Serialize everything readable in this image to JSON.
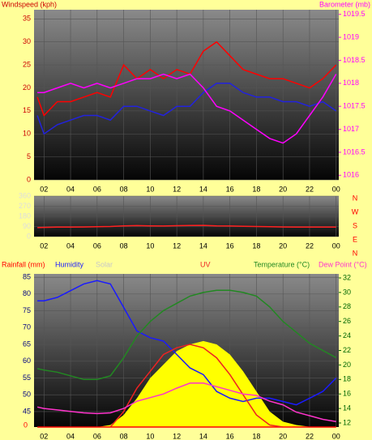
{
  "chart_data": [
    {
      "type": "line",
      "ylabel": "Windspeed (kph)",
      "y2label": "Barometer (mb)",
      "axis_colors": {
        "y": "#cc0000",
        "y2": "#ff00ff"
      },
      "x": [
        1.5,
        2,
        3,
        4,
        5,
        6,
        7,
        8,
        9,
        10,
        11,
        12,
        13,
        14,
        15,
        16,
        17,
        18,
        19,
        20,
        21,
        22,
        23,
        24
      ],
      "xlim": [
        1.25,
        24.2
      ],
      "xticks": [
        {
          "value": 2,
          "label": "02"
        },
        {
          "value": 4,
          "label": "04"
        },
        {
          "value": 6,
          "label": "06"
        },
        {
          "value": 8,
          "label": "08"
        },
        10,
        12,
        14,
        16,
        18,
        20,
        22,
        {
          "value": 24,
          "label": "00"
        }
      ],
      "ylim": [
        0,
        37
      ],
      "yticks": [
        0,
        5,
        10,
        15,
        20,
        25,
        30,
        35
      ],
      "y2lim": [
        1015.9,
        1019.6
      ],
      "y2ticks": [
        1016,
        1016.5,
        1017,
        1017.5,
        1018,
        1018.5,
        1019,
        1019.5
      ],
      "grid": true,
      "series": [
        {
          "color": "#ff0000",
          "values": [
            18,
            14,
            17,
            17,
            18,
            19,
            18,
            25,
            22,
            24,
            22,
            24,
            23,
            28,
            30,
            27,
            24,
            23,
            22,
            22,
            21,
            20,
            22,
            25
          ]
        },
        {
          "color": "#2222dd",
          "values": [
            14,
            10,
            12,
            13,
            14,
            14,
            13,
            16,
            16,
            15,
            14,
            16,
            16,
            19,
            21,
            21,
            19,
            18,
            18,
            17,
            17,
            16,
            17,
            15
          ]
        },
        {
          "color": "#ff00ff",
          "axis": "y2",
          "values": [
            1017.8,
            1017.8,
            1017.9,
            1018.0,
            1017.9,
            1018.0,
            1017.9,
            1018.0,
            1018.1,
            1018.1,
            1018.2,
            1018.1,
            1018.2,
            1017.9,
            1017.5,
            1017.4,
            1017.2,
            1017.0,
            1016.8,
            1016.7,
            1016.9,
            1017.3,
            1017.7,
            1018.2
          ]
        }
      ]
    },
    {
      "type": "line",
      "axis_colors": {
        "y": "#dddddd"
      },
      "compass_labels": [
        "N",
        "W",
        "S",
        "E",
        "N"
      ],
      "x": [
        1.5,
        2,
        3,
        4,
        5,
        6,
        7,
        8,
        9,
        10,
        11,
        12,
        13,
        14,
        15,
        16,
        17,
        18,
        19,
        20,
        21,
        22,
        23,
        24
      ],
      "xlim": [
        1.25,
        24.2
      ],
      "xticks": [
        {
          "value": 2,
          "label": "02"
        },
        {
          "value": 4,
          "label": "04"
        },
        {
          "value": 6,
          "label": "06"
        },
        {
          "value": 8,
          "label": "08"
        },
        10,
        12,
        14,
        16,
        18,
        20,
        22,
        {
          "value": 24,
          "label": "00"
        }
      ],
      "ylim": [
        0,
        360
      ],
      "yticks": [
        0,
        90,
        180,
        270,
        360
      ],
      "grid": true,
      "series": [
        {
          "color": "#ff2020",
          "values": [
            80,
            82,
            84,
            85,
            86,
            88,
            90,
            95,
            98,
            96,
            94,
            97,
            99,
            100,
            96,
            94,
            92,
            90,
            88,
            86,
            85,
            84,
            84,
            85
          ]
        }
      ]
    },
    {
      "type": "line",
      "axis_colors": {
        "y": "#000080",
        "y2": "#006600",
        "y3": "#ff0000"
      },
      "x": [
        1.5,
        2,
        3,
        4,
        5,
        6,
        7,
        8,
        9,
        10,
        11,
        12,
        13,
        14,
        15,
        16,
        17,
        18,
        19,
        20,
        21,
        22,
        23,
        24
      ],
      "xlim": [
        1.25,
        24.2
      ],
      "xticks": [
        {
          "value": 2,
          "label": "02"
        },
        {
          "value": 4,
          "label": "04"
        },
        {
          "value": 6,
          "label": "06"
        },
        {
          "value": 8,
          "label": "08"
        },
        10,
        12,
        14,
        16,
        18,
        20,
        22,
        {
          "value": 24,
          "label": "00"
        }
      ],
      "ylim": [
        40.4,
        86
      ],
      "yticks": [
        45,
        50,
        55,
        60,
        65,
        70,
        75,
        80,
        85
      ],
      "y2lim": [
        11.44,
        32.56
      ],
      "y2ticks": [
        12,
        14,
        16,
        18,
        20,
        22,
        24,
        26,
        28,
        30,
        32
      ],
      "y3lim": [
        0,
        1
      ],
      "y3ticks": [
        0
      ],
      "grid": true,
      "series": [
        {
          "name": "Solar",
          "type": "area",
          "color": "#ffff00",
          "values": [
            40.4,
            40.4,
            40.4,
            40.4,
            40.4,
            40.4,
            41,
            44,
            49,
            55,
            59,
            63,
            65,
            66,
            65,
            62,
            57,
            51,
            45,
            42,
            41,
            40.5,
            40.4,
            40.4
          ]
        },
        {
          "name": "Rainfall (mm)",
          "color": "#ff0000",
          "axis": "y3",
          "values": [
            0,
            0,
            0,
            0,
            0,
            0,
            0,
            0,
            0,
            0,
            0,
            0,
            0,
            0,
            0,
            0,
            0,
            0,
            0,
            0,
            0,
            0,
            0,
            0
          ]
        },
        {
          "name": "Humidity",
          "color": "#1a1aff",
          "values": [
            78,
            78,
            79,
            81,
            83,
            84,
            83,
            76,
            69,
            67,
            66,
            62,
            58,
            56,
            51,
            49,
            48,
            49,
            49,
            48,
            47,
            49,
            51,
            55
          ]
        },
        {
          "name": "UV",
          "color": "#ee2222",
          "values": [
            null,
            null,
            null,
            null,
            null,
            null,
            40.4,
            45,
            52,
            57,
            62,
            64,
            65,
            64,
            61,
            56,
            50,
            44,
            41,
            40.4,
            null,
            null,
            null,
            null
          ]
        },
        {
          "name": "Temperature (°C)",
          "color": "#228822",
          "axis": "y2",
          "values": [
            19.5,
            19.3,
            19,
            18.5,
            18,
            18,
            18.5,
            21,
            24,
            26,
            27.5,
            28.5,
            29.5,
            30,
            30.3,
            30.3,
            30,
            29.5,
            28,
            26,
            24.5,
            23,
            22,
            21
          ]
        },
        {
          "name": "Dew Point (°C)",
          "color": "#ff33cc",
          "axis": "y2",
          "values": [
            14.2,
            14,
            13.8,
            13.6,
            13.4,
            13.3,
            13.4,
            14,
            15,
            15.5,
            16,
            16.8,
            17.5,
            17.5,
            17,
            16.5,
            16,
            15.8,
            15,
            14.5,
            13.5,
            13,
            12.5,
            12.2
          ]
        }
      ]
    }
  ]
}
